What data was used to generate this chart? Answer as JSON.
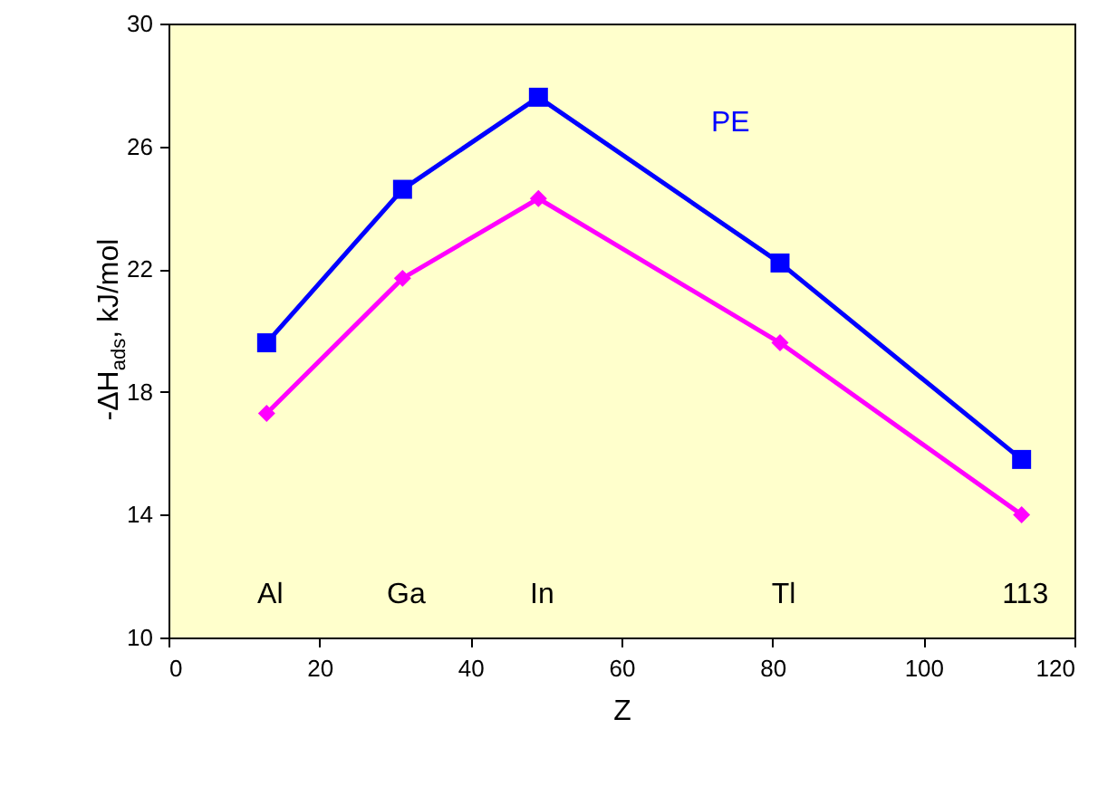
{
  "chart_data": {
    "type": "line",
    "xlabel": "Z",
    "ylabel": "-ΔH$_{ads}$, kJ/mol",
    "x": [
      13,
      31,
      49,
      81,
      113
    ],
    "series": [
      {
        "name": "PE",
        "color": "#0000ff",
        "marker": "square",
        "values": [
          19.6,
          24.6,
          27.6,
          22.2,
          15.8
        ]
      },
      {
        "color": "#ff00ff",
        "marker": "diamond",
        "values": [
          17.3,
          21.7,
          24.3,
          19.6,
          14.0
        ]
      }
    ],
    "annotations": [
      "Al",
      "Ga",
      "In",
      "Tl",
      "113"
    ],
    "xlim": [
      0,
      120
    ],
    "xticks": [
      0,
      20,
      40,
      60,
      80,
      100,
      120
    ],
    "ylim": [
      10,
      30
    ],
    "yticks": [
      10,
      14,
      18,
      22,
      26,
      30
    ],
    "grid": false
  }
}
